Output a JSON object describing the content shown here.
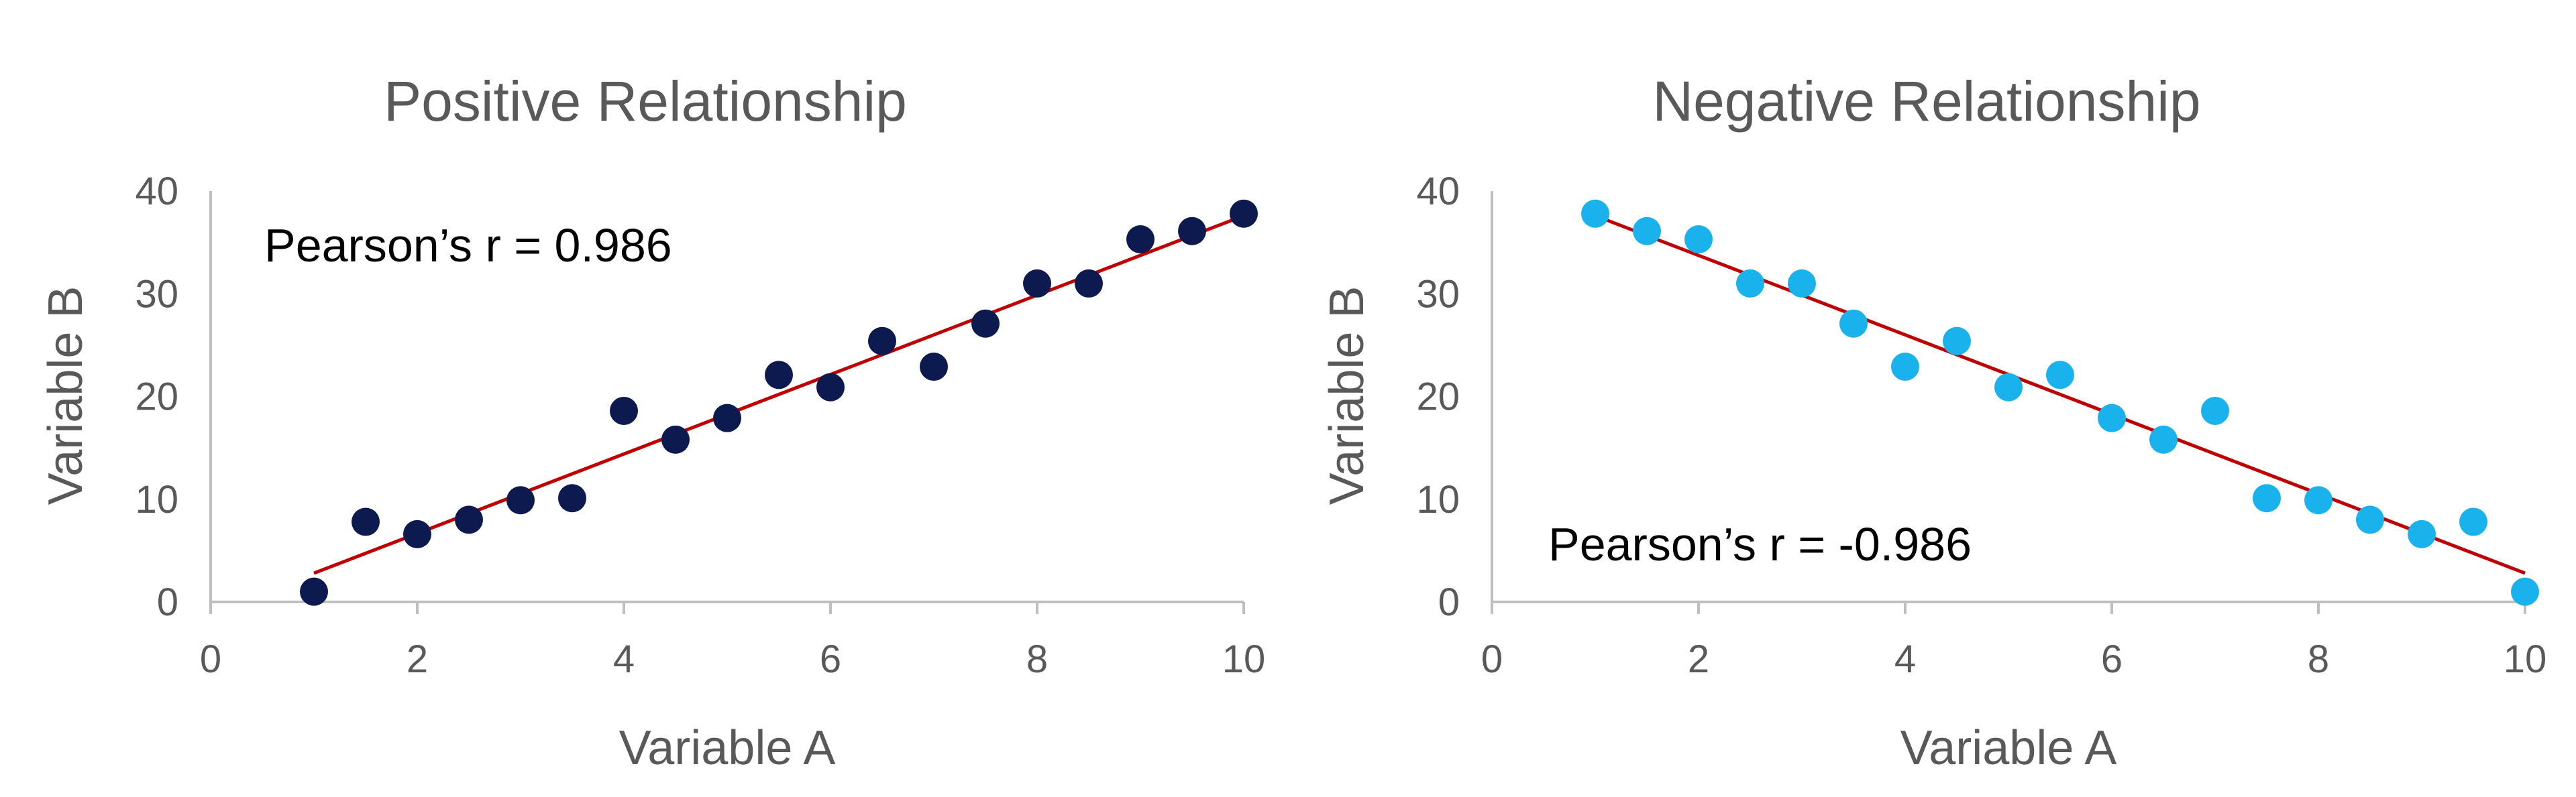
{
  "chart_data": [
    {
      "type": "scatter",
      "title": "Positive Relationship",
      "xlabel": "Variable A",
      "ylabel": "Variable B",
      "xlim": [
        0,
        10
      ],
      "ylim": [
        0,
        40
      ],
      "xticks": [
        "0",
        "2",
        "4",
        "6",
        "8",
        "10"
      ],
      "yticks": [
        "0",
        "10",
        "20",
        "30",
        "40"
      ],
      "grid": false,
      "annotation": "Pearson’s r = 0.986",
      "annotation_position": "top-left",
      "colors": {
        "points": "#0d1a4f",
        "trendline": "#c00000",
        "axis": "#bfbfbf",
        "text": "#595959"
      },
      "x": [
        1,
        1.5,
        2,
        2.5,
        3,
        3.5,
        4,
        4.5,
        5,
        5.5,
        6,
        6.5,
        7,
        7.5,
        8,
        8.5,
        9,
        9.5,
        10
      ],
      "y": [
        1,
        7.8,
        6.6,
        8,
        9.9,
        10.1,
        18.6,
        15.8,
        17.9,
        22.1,
        20.9,
        25.4,
        22.9,
        27.1,
        31,
        31,
        35.3,
        36.1,
        37.8
      ],
      "trendline": {
        "type": "linear",
        "x": [
          1,
          10
        ],
        "y": [
          2.8,
          37.6
        ]
      }
    },
    {
      "type": "scatter",
      "title": "Negative Relationship",
      "xlabel": "Variable A",
      "ylabel": "Variable B",
      "xlim": [
        0,
        10
      ],
      "ylim": [
        0,
        40
      ],
      "xticks": [
        "0",
        "2",
        "4",
        "6",
        "8",
        "10"
      ],
      "yticks": [
        "0",
        "10",
        "20",
        "30",
        "40"
      ],
      "grid": false,
      "annotation": "Pearson’s r = -0.986",
      "annotation_position": "bottom-left",
      "colors": {
        "points": "#1ab2ec",
        "trendline": "#c00000",
        "axis": "#bfbfbf",
        "text": "#595959"
      },
      "x": [
        1,
        1.5,
        2,
        2.5,
        3,
        3.5,
        4,
        4.5,
        5,
        5.5,
        6,
        6.5,
        7,
        7.5,
        8,
        8.5,
        9,
        9.5,
        10
      ],
      "y": [
        37.8,
        36.1,
        35.3,
        31,
        31,
        27.1,
        22.9,
        25.4,
        20.9,
        22.1,
        17.9,
        15.8,
        18.6,
        10.1,
        9.9,
        8,
        6.6,
        7.8,
        1
      ],
      "trendline": {
        "type": "linear",
        "x": [
          1,
          10
        ],
        "y": [
          37.6,
          2.8
        ]
      }
    }
  ]
}
